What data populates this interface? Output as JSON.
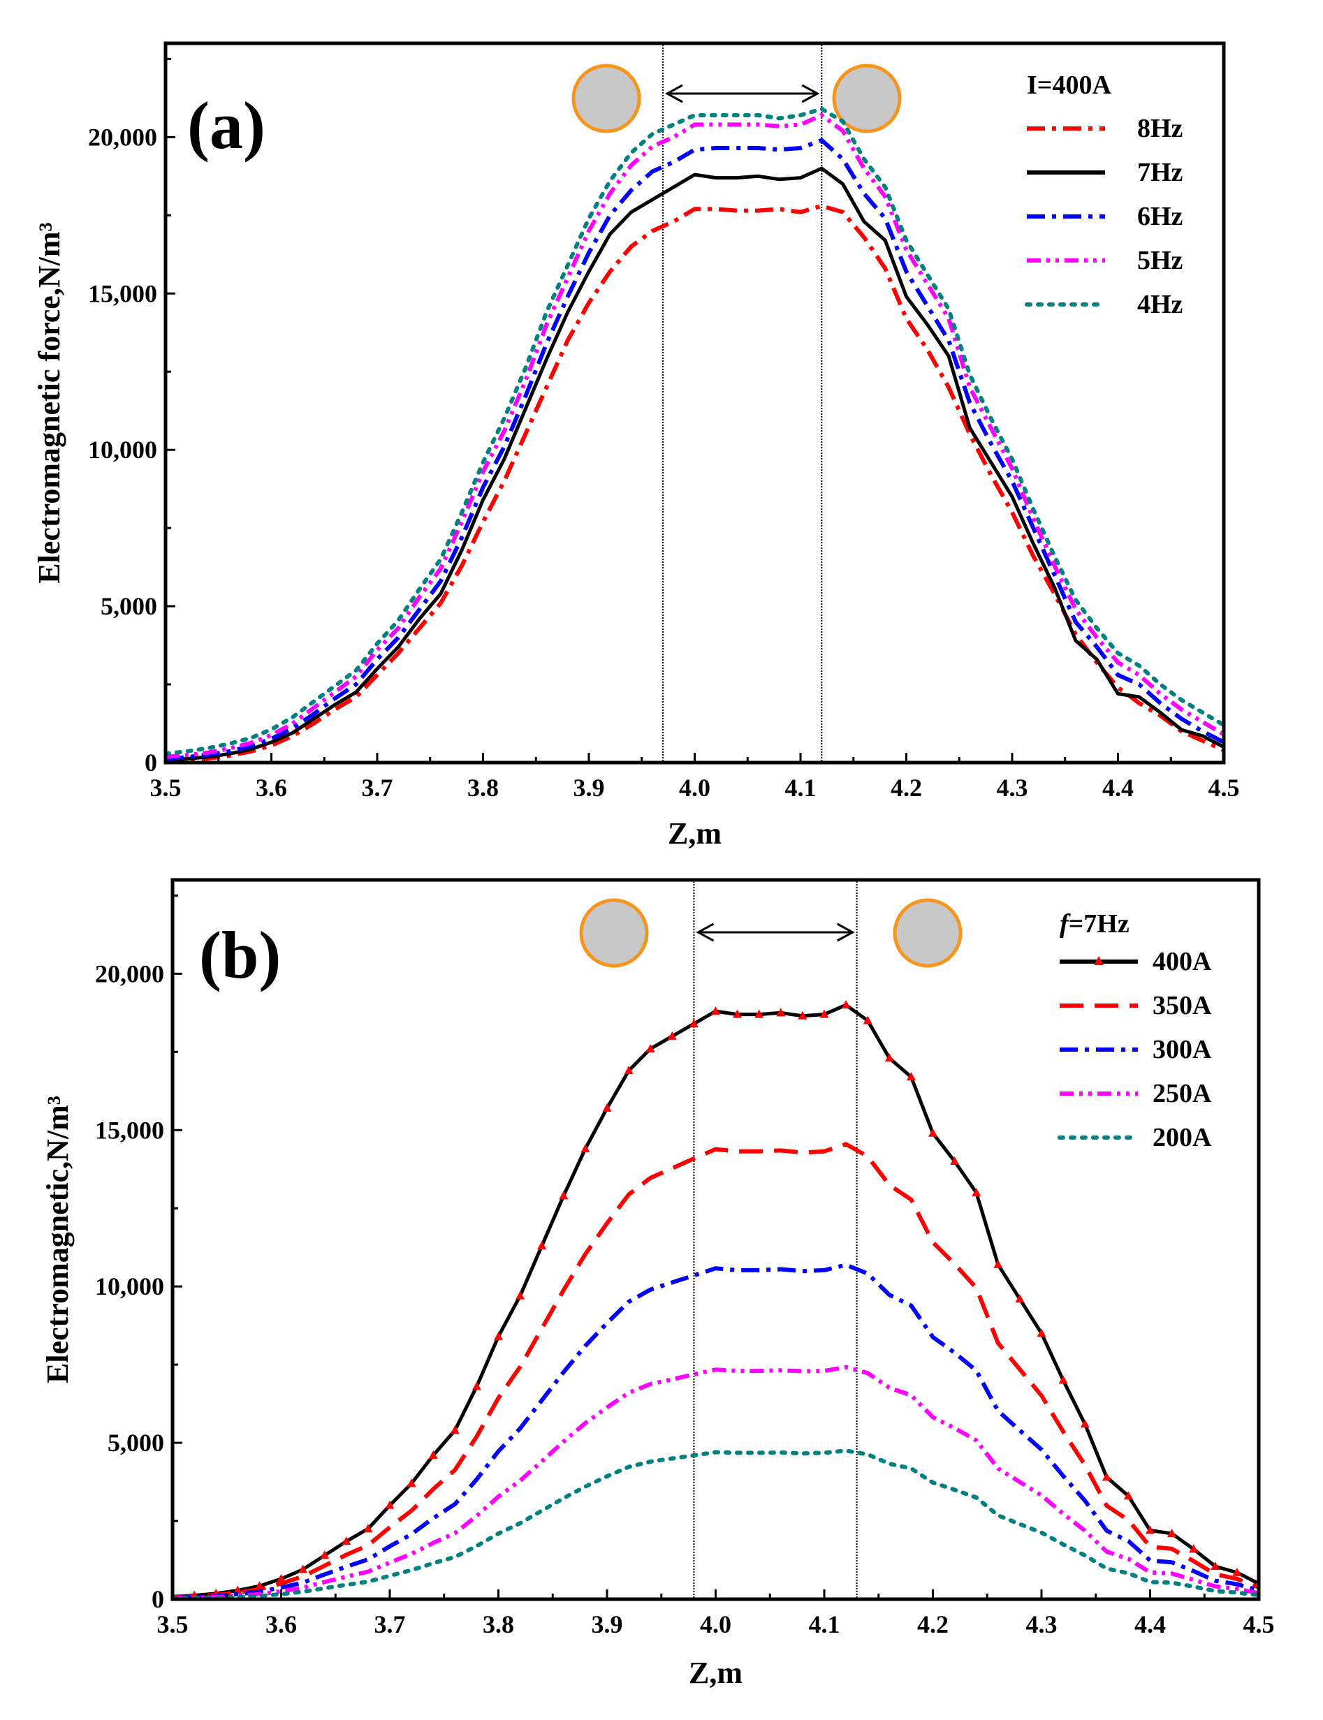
{
  "figure": {
    "panels": [
      {
        "panel_label": "(a)",
        "legend_title": "I=400A",
        "xlabel": "Z,m",
        "ylabel": "Electromagnetic force,N/m³"
      },
      {
        "panel_label": "(b)",
        "legend_title_italic": "f",
        "legend_title_rest": "=7Hz",
        "xlabel": "Z,m",
        "ylabel": "Electromagnetic,N/m³"
      }
    ]
  },
  "chart_data": [
    {
      "type": "line",
      "panel": "(a)",
      "xlabel": "Z,m",
      "ylabel": "Electromagnetic force,N/m³",
      "xlim": [
        3.5,
        4.5
      ],
      "ylim": [
        0,
        23000
      ],
      "xticks": [
        3.5,
        3.6,
        3.7,
        3.8,
        3.9,
        4.0,
        4.1,
        4.2,
        4.3,
        4.4,
        4.5
      ],
      "xtick_labels": [
        "3.5",
        "3.6",
        "3.7",
        "3.8",
        "3.9",
        "4.0",
        "4.1",
        "4.2",
        "4.3",
        "4.4",
        "4.5"
      ],
      "yticks": [
        0,
        5000,
        10000,
        15000,
        20000
      ],
      "ytick_labels": [
        "0",
        "5,000",
        "10,000",
        "15,000",
        "20,000"
      ],
      "grid": false,
      "legend_position": "top-right",
      "legend_title": "I=400A",
      "annotations": {
        "vertical_lines_x": [
          3.97,
          4.12
        ],
        "arrow_label": ""
      },
      "x": [
        3.5,
        3.52,
        3.54,
        3.56,
        3.58,
        3.6,
        3.62,
        3.64,
        3.66,
        3.68,
        3.7,
        3.72,
        3.74,
        3.76,
        3.78,
        3.8,
        3.82,
        3.84,
        3.86,
        3.88,
        3.9,
        3.92,
        3.94,
        3.96,
        3.98,
        4.0,
        4.02,
        4.04,
        4.06,
        4.08,
        4.1,
        4.12,
        4.14,
        4.16,
        4.18,
        4.2,
        4.22,
        4.24,
        4.26,
        4.28,
        4.3,
        4.32,
        4.34,
        4.36,
        4.38,
        4.4,
        4.42,
        4.44,
        4.46,
        4.48,
        4.5
      ],
      "series": [
        {
          "name": "8Hz",
          "color": "#ff0000",
          "style": "dash-dot",
          "values": [
            50,
            80,
            130,
            220,
            350,
            550,
            850,
            1250,
            1700,
            2100,
            2800,
            3500,
            4300,
            5100,
            6300,
            7700,
            9000,
            10500,
            12000,
            13500,
            14700,
            15700,
            16500,
            17000,
            17300,
            17700,
            17700,
            17650,
            17650,
            17700,
            17600,
            17800,
            17600,
            16800,
            15800,
            14200,
            13200,
            12000,
            10500,
            9200,
            8000,
            6600,
            5400,
            4100,
            3200,
            2400,
            1900,
            1500,
            1000,
            700,
            400
          ]
        },
        {
          "name": "7Hz",
          "color": "#000000",
          "style": "solid",
          "values": [
            80,
            120,
            180,
            280,
            420,
            650,
            950,
            1400,
            1850,
            2250,
            3000,
            3700,
            4600,
            5400,
            6800,
            8400,
            9700,
            11300,
            12900,
            14400,
            15700,
            16900,
            17600,
            18000,
            18400,
            18800,
            18700,
            18700,
            18750,
            18650,
            18700,
            19000,
            18500,
            17300,
            16700,
            14900,
            14000,
            13000,
            10700,
            9600,
            8500,
            7000,
            5600,
            3900,
            3300,
            2200,
            2100,
            1600,
            1050,
            850,
            500
          ]
        },
        {
          "name": "6Hz",
          "color": "#0000ff",
          "style": "dash-dot",
          "values": [
            120,
            170,
            250,
            360,
            520,
            760,
            1100,
            1550,
            2050,
            2500,
            3300,
            4000,
            4900,
            5800,
            7200,
            8800,
            10100,
            11700,
            13400,
            14900,
            16300,
            17500,
            18300,
            18900,
            19200,
            19600,
            19650,
            19650,
            19650,
            19600,
            19650,
            19900,
            19300,
            18200,
            17400,
            15700,
            14600,
            13500,
            11500,
            10200,
            9000,
            7500,
            6000,
            4500,
            3700,
            2800,
            2500,
            1900,
            1400,
            1000,
            650
          ]
        },
        {
          "name": "5Hz",
          "color": "#ff00ff",
          "style": "dash-dot-dot",
          "values": [
            180,
            240,
            320,
            450,
            620,
            880,
            1250,
            1750,
            2250,
            2750,
            3600,
            4300,
            5300,
            6200,
            7700,
            9300,
            10600,
            12200,
            14000,
            15500,
            17000,
            18200,
            19100,
            19700,
            20000,
            20400,
            20400,
            20400,
            20400,
            20350,
            20400,
            20700,
            20200,
            19000,
            18100,
            16400,
            15300,
            14200,
            12000,
            10700,
            9400,
            7800,
            6300,
            4900,
            4000,
            3200,
            2800,
            2200,
            1700,
            1300,
            900
          ]
        },
        {
          "name": "4Hz",
          "color": "#008080",
          "style": "dotted",
          "values": [
            280,
            360,
            460,
            600,
            780,
            1060,
            1450,
            1950,
            2450,
            2950,
            3800,
            4550,
            5550,
            6500,
            8000,
            9600,
            11000,
            12600,
            14400,
            15900,
            17400,
            18600,
            19500,
            20100,
            20400,
            20700,
            20700,
            20700,
            20700,
            20600,
            20700,
            20900,
            20500,
            19300,
            18400,
            16700,
            15600,
            14500,
            12400,
            11000,
            9700,
            8100,
            6600,
            5200,
            4300,
            3500,
            3100,
            2500,
            2000,
            1600,
            1200
          ]
        }
      ]
    },
    {
      "type": "line",
      "panel": "(b)",
      "xlabel": "Z,m",
      "ylabel": "Electromagnetic,N/m³",
      "xlim": [
        3.5,
        4.5
      ],
      "ylim": [
        0,
        23000
      ],
      "xticks": [
        3.5,
        3.6,
        3.7,
        3.8,
        3.9,
        4.0,
        4.1,
        4.2,
        4.3,
        4.4,
        4.5
      ],
      "xtick_labels": [
        "3.5",
        "3.6",
        "3.7",
        "3.8",
        "3.9",
        "4.0",
        "4.1",
        "4.2",
        "4.3",
        "4.4",
        "4.5"
      ],
      "yticks": [
        0,
        5000,
        10000,
        15000,
        20000
      ],
      "ytick_labels": [
        "0",
        "5,000",
        "10,000",
        "15,000",
        "20,000"
      ],
      "grid": false,
      "legend_position": "top-right",
      "legend_title": "f=7Hz",
      "annotations": {
        "vertical_lines_x": [
          3.98,
          4.13
        ],
        "arrow_label": ""
      },
      "x": [
        3.5,
        3.52,
        3.54,
        3.56,
        3.58,
        3.6,
        3.62,
        3.64,
        3.66,
        3.68,
        3.7,
        3.72,
        3.74,
        3.76,
        3.78,
        3.8,
        3.82,
        3.84,
        3.86,
        3.88,
        3.9,
        3.92,
        3.94,
        3.96,
        3.98,
        4.0,
        4.02,
        4.04,
        4.06,
        4.08,
        4.1,
        4.12,
        4.14,
        4.16,
        4.18,
        4.2,
        4.22,
        4.24,
        4.26,
        4.28,
        4.3,
        4.32,
        4.34,
        4.36,
        4.38,
        4.4,
        4.42,
        4.44,
        4.46,
        4.48,
        4.5
      ],
      "series": [
        {
          "name": "400A",
          "color": "#000000",
          "style": "solid",
          "marker": "triangle",
          "marker_color": "#ff0000",
          "values": [
            80,
            120,
            180,
            280,
            420,
            650,
            950,
            1400,
            1850,
            2250,
            3000,
            3700,
            4600,
            5400,
            6800,
            8400,
            9700,
            11300,
            12900,
            14400,
            15700,
            16900,
            17600,
            18000,
            18400,
            18800,
            18700,
            18700,
            18750,
            18650,
            18700,
            19000,
            18500,
            17300,
            16700,
            14900,
            14000,
            13000,
            10700,
            9600,
            8500,
            7000,
            5600,
            3900,
            3300,
            2200,
            2100,
            1600,
            1050,
            850,
            500
          ]
        },
        {
          "name": "350A",
          "color": "#ff0000",
          "style": "dashed",
          "values": [
            60,
            90,
            140,
            210,
            320,
            500,
            730,
            1070,
            1420,
            1720,
            2300,
            2830,
            3520,
            4130,
            5200,
            6430,
            7430,
            8650,
            9880,
            11030,
            12020,
            12940,
            13470,
            13780,
            14090,
            14390,
            14320,
            14320,
            14350,
            14280,
            14320,
            14550,
            14160,
            13240,
            12780,
            11410,
            10720,
            9950,
            8190,
            7350,
            6510,
            5360,
            4290,
            2990,
            2530,
            1680,
            1610,
            1220,
            800,
            650,
            380
          ]
        },
        {
          "name": "300A",
          "color": "#0000ff",
          "style": "dash-dot",
          "values": [
            45,
            70,
            100,
            160,
            240,
            370,
            530,
            790,
            1040,
            1270,
            1690,
            2080,
            2590,
            3040,
            3830,
            4730,
            5460,
            6360,
            7260,
            8100,
            8830,
            9510,
            9900,
            10130,
            10350,
            10580,
            10520,
            10520,
            10550,
            10490,
            10520,
            10690,
            10410,
            9730,
            9390,
            8380,
            7880,
            7310,
            6020,
            5400,
            4780,
            3940,
            3150,
            2190,
            1860,
            1240,
            1180,
            900,
            590,
            480,
            280
          ]
        },
        {
          "name": "250A",
          "color": "#ff00ff",
          "style": "dash-dot-dot",
          "values": [
            30,
            45,
            70,
            110,
            160,
            250,
            370,
            550,
            720,
            880,
            1170,
            1450,
            1800,
            2110,
            2660,
            3280,
            3790,
            4410,
            5040,
            5630,
            6130,
            6600,
            6880,
            7030,
            7190,
            7340,
            7300,
            7300,
            7320,
            7290,
            7300,
            7420,
            7230,
            6760,
            6520,
            5820,
            5470,
            5080,
            4180,
            3750,
            3320,
            2730,
            2190,
            1520,
            1290,
            860,
            820,
            620,
            410,
            330,
            190
          ]
        },
        {
          "name": "200A",
          "color": "#008080",
          "style": "dotted",
          "values": [
            20,
            30,
            45,
            70,
            100,
            160,
            240,
            350,
            460,
            560,
            750,
            930,
            1150,
            1350,
            1700,
            2100,
            2430,
            2830,
            3230,
            3600,
            3930,
            4230,
            4400,
            4500,
            4600,
            4700,
            4680,
            4680,
            4690,
            4660,
            4680,
            4750,
            4630,
            4330,
            4180,
            3730,
            3500,
            3250,
            2680,
            2400,
            2130,
            1750,
            1400,
            980,
            830,
            550,
            530,
            400,
            260,
            210,
            130
          ]
        }
      ]
    }
  ]
}
